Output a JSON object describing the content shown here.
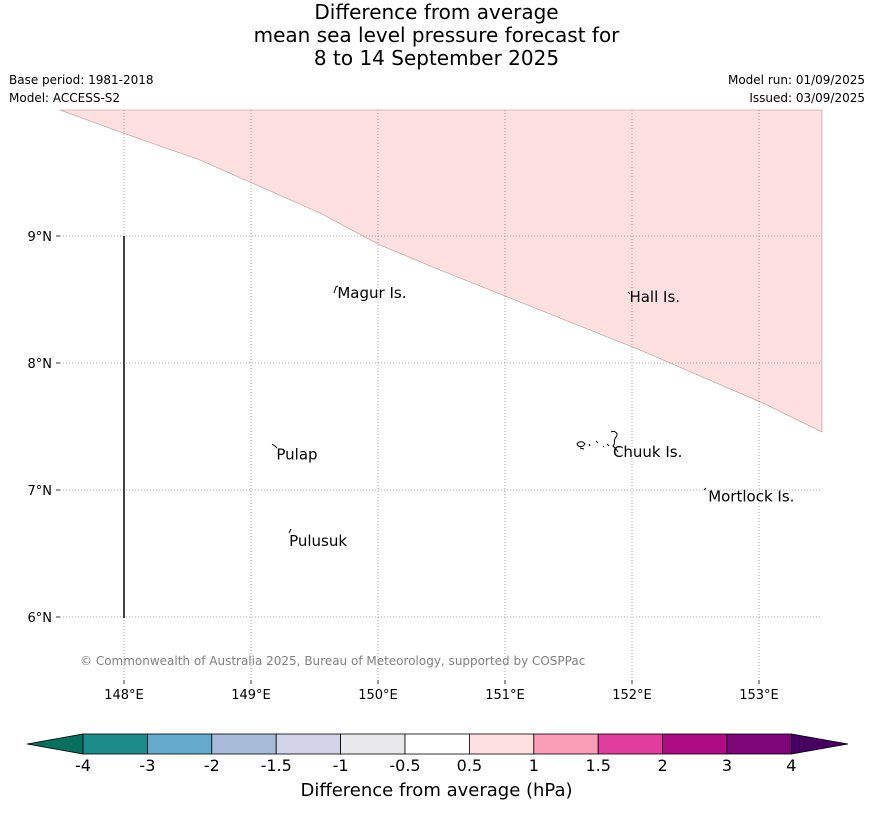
{
  "title": {
    "line1": "Difference from average",
    "line2": "mean sea level pressure forecast for",
    "line3": "8 to 14 September 2025"
  },
  "meta": {
    "base_period": "Base period: 1981-2018",
    "model": "Model: ACCESS-S2",
    "model_run": "Model run: 01/09/2025",
    "issued": "Issued: 03/09/2025"
  },
  "map": {
    "lon_ticks": [
      "148°E",
      "149°E",
      "150°E",
      "151°E",
      "152°E",
      "153°E"
    ],
    "lat_ticks": [
      "9°N",
      "8°N",
      "7°N",
      "6°N"
    ],
    "places": [
      {
        "name": "Magur Is.",
        "lon": 149.68,
        "lat": 8.55
      },
      {
        "name": "Hall Is.",
        "lon": 151.98,
        "lat": 8.52
      },
      {
        "name": "Pulap",
        "lon": 149.2,
        "lat": 7.28
      },
      {
        "name": "Chuuk Is.",
        "lon": 151.85,
        "lat": 7.3
      },
      {
        "name": "Mortlock Is.",
        "lon": 152.6,
        "lat": 6.95
      },
      {
        "name": "Pulusuk",
        "lon": 149.3,
        "lat": 6.6
      }
    ],
    "shaded_region_category": "0.5 to 1",
    "copyright": "© Commonwealth of Australia 2025, Bureau of Meteorology, supported by COSPPac"
  },
  "colorbar": {
    "label": "Difference from average (hPa)",
    "tick_labels": [
      "-4",
      "-3",
      "-2",
      "-1.5",
      "-1",
      "-0.5",
      "0.5",
      "1",
      "1.5",
      "2",
      "3",
      "4"
    ],
    "colors": [
      "#1a8a8a",
      "#65a9cc",
      "#a9bbdb",
      "#d3d3e8",
      "#e9e9eb",
      "#ffffff",
      "#fde0df",
      "#fa9db6",
      "#e03c9d",
      "#af0b84",
      "#7d0479"
    ],
    "under_color": "#076f5e",
    "over_color": "#450061"
  }
}
